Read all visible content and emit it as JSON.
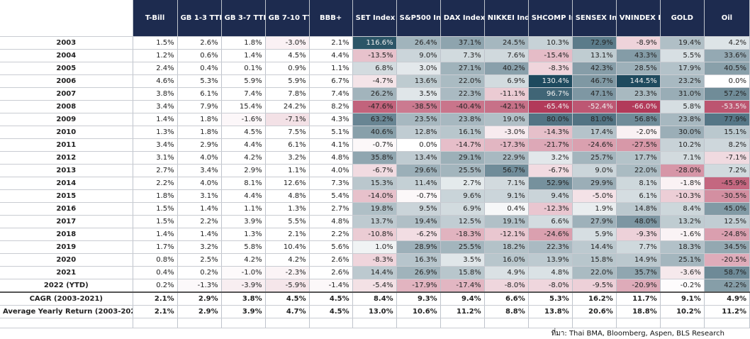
{
  "chart_data": {
    "type": "table",
    "columns": [
      "T-Bill",
      "GB 1-3 TTM",
      "GB 3-7 TTM",
      "GB 7-10 TTM",
      "BBB+",
      "SET Index",
      "S&P500 Index",
      "DAX Index",
      "NIKKEI Index",
      "SHCOMP Index",
      "SENSEX Index",
      "VNINDEX Index",
      "GOLD",
      "Oil"
    ],
    "rows": [
      {
        "label": "2003",
        "values": [
          1.5,
          2.6,
          1.8,
          -3.0,
          2.1,
          116.6,
          26.4,
          37.1,
          24.5,
          10.3,
          72.9,
          -8.9,
          19.4,
          4.2
        ]
      },
      {
        "label": "2004",
        "values": [
          1.2,
          0.6,
          1.4,
          4.5,
          4.4,
          -13.5,
          9.0,
          7.3,
          7.6,
          -15.4,
          13.1,
          43.3,
          5.5,
          33.6
        ]
      },
      {
        "label": "2005",
        "values": [
          2.4,
          0.4,
          0.1,
          0.9,
          1.1,
          6.8,
          3.0,
          27.1,
          40.2,
          -8.3,
          42.3,
          28.5,
          17.9,
          40.5
        ]
      },
      {
        "label": "2006",
        "values": [
          4.6,
          5.3,
          5.9,
          5.9,
          6.7,
          -4.7,
          13.6,
          22.0,
          6.9,
          130.4,
          46.7,
          144.5,
          23.2,
          0.0
        ]
      },
      {
        "label": "2007",
        "values": [
          3.8,
          6.1,
          7.4,
          7.8,
          7.4,
          26.2,
          3.5,
          22.3,
          -11.1,
          96.7,
          47.1,
          23.3,
          31.0,
          57.2
        ]
      },
      {
        "label": "2008",
        "values": [
          3.4,
          7.9,
          15.4,
          24.2,
          8.2,
          -47.6,
          -38.5,
          -40.4,
          -42.1,
          -65.4,
          -52.4,
          -66.0,
          5.8,
          -53.5
        ]
      },
      {
        "label": "2009",
        "values": [
          1.4,
          1.8,
          -1.6,
          -7.1,
          4.3,
          63.2,
          23.5,
          23.8,
          19.0,
          80.0,
          81.0,
          56.8,
          23.8,
          77.9
        ]
      },
      {
        "label": "2010",
        "values": [
          1.3,
          1.8,
          4.5,
          7.5,
          5.1,
          40.6,
          12.8,
          16.1,
          -3.0,
          -14.3,
          17.4,
          -2.0,
          30.0,
          15.1
        ]
      },
      {
        "label": "2011",
        "values": [
          3.4,
          2.9,
          4.4,
          6.1,
          4.1,
          -0.7,
          0.0,
          -14.7,
          -17.3,
          -21.7,
          -24.6,
          -27.5,
          10.2,
          8.2
        ]
      },
      {
        "label": "2012",
        "values": [
          3.1,
          4.0,
          4.2,
          3.2,
          4.8,
          35.8,
          13.4,
          29.1,
          22.9,
          3.2,
          25.7,
          17.7,
          7.1,
          -7.1
        ]
      },
      {
        "label": "2013",
        "values": [
          2.7,
          3.4,
          2.9,
          1.1,
          4.0,
          -6.7,
          29.6,
          25.5,
          56.7,
          -6.7,
          9.0,
          22.0,
          -28.0,
          7.2
        ]
      },
      {
        "label": "2014",
        "values": [
          2.2,
          4.0,
          8.1,
          12.6,
          7.3,
          15.3,
          11.4,
          2.7,
          7.1,
          52.9,
          29.9,
          8.1,
          -1.8,
          -45.9
        ]
      },
      {
        "label": "2015",
        "values": [
          1.8,
          3.1,
          4.4,
          4.8,
          5.4,
          -14.0,
          -0.7,
          9.6,
          9.1,
          9.4,
          -5.0,
          6.1,
          -10.3,
          -30.5
        ]
      },
      {
        "label": "2016",
        "values": [
          1.5,
          1.4,
          1.1,
          1.3,
          2.7,
          19.8,
          9.5,
          6.9,
          0.4,
          -12.3,
          1.9,
          14.8,
          8.4,
          45.0
        ]
      },
      {
        "label": "2017",
        "values": [
          1.5,
          2.2,
          3.9,
          5.5,
          4.8,
          13.7,
          19.4,
          12.5,
          19.1,
          6.6,
          27.9,
          48.0,
          13.2,
          12.5
        ]
      },
      {
        "label": "2018",
        "values": [
          1.4,
          1.4,
          1.3,
          2.1,
          2.2,
          -10.8,
          -6.2,
          -18.3,
          -12.1,
          -24.6,
          5.9,
          -9.3,
          -1.6,
          -24.8
        ]
      },
      {
        "label": "2019",
        "values": [
          1.7,
          3.2,
          5.8,
          10.4,
          5.6,
          1.0,
          28.9,
          25.5,
          18.2,
          22.3,
          14.4,
          7.7,
          18.3,
          34.5
        ]
      },
      {
        "label": "2020",
        "values": [
          0.8,
          2.5,
          4.2,
          4.2,
          2.6,
          -8.3,
          16.3,
          3.5,
          16.0,
          13.9,
          15.8,
          14.9,
          25.1,
          -20.5
        ]
      },
      {
        "label": "2021",
        "values": [
          0.4,
          0.2,
          -1.0,
          -2.3,
          2.6,
          14.4,
          26.9,
          15.8,
          4.9,
          4.8,
          22.0,
          35.7,
          -3.6,
          58.7
        ]
      },
      {
        "label": "2022 (YTD)",
        "values": [
          0.2,
          -1.3,
          -3.9,
          -5.9,
          -1.4,
          -5.4,
          -17.9,
          -17.4,
          -8.0,
          -8.0,
          -9.5,
          -20.9,
          -0.2,
          42.2
        ]
      }
    ],
    "summary_rows": [
      {
        "label": "CAGR (2003-2021)",
        "values": [
          2.1,
          2.9,
          3.8,
          4.5,
          4.5,
          8.4,
          9.3,
          9.4,
          6.6,
          5.3,
          16.2,
          11.7,
          9.1,
          4.9
        ]
      },
      {
        "label": "Average Yearly Return (2003-2021)",
        "values": [
          2.1,
          2.9,
          3.9,
          4.7,
          4.5,
          13.0,
          10.6,
          11.2,
          8.8,
          13.8,
          20.6,
          18.8,
          10.2,
          11.2
        ]
      }
    ],
    "value_suffix": "%",
    "heat_columns_from_index": 5,
    "colors": {
      "header_bg": "#1d2b4f",
      "header_text": "#ffffff",
      "positive_strong": "#1e4a5e",
      "negative_strong": "#b23a5a",
      "neutral": "#ffffff"
    }
  },
  "source_note": "ที่มา: Thai BMA, Bloomberg, Aspen, BLS Research"
}
